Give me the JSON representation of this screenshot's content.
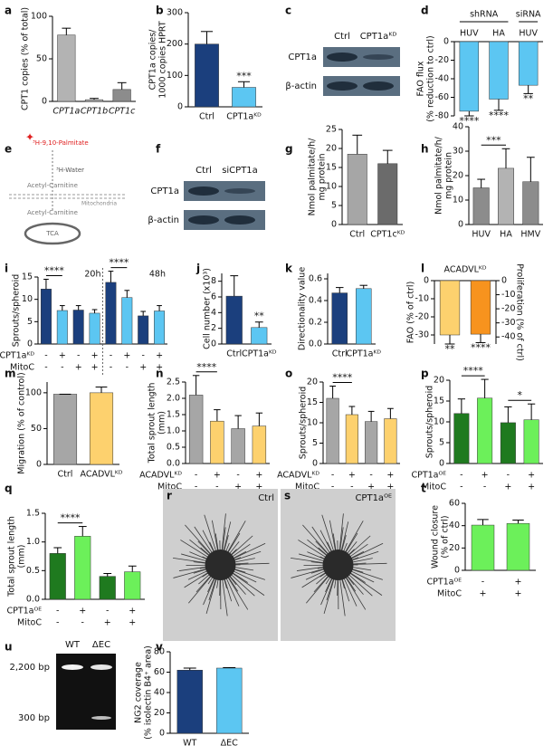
{
  "chart_data": [
    {
      "panel": "a",
      "type": "bar",
      "ylabel": "CPT1 copies (% of total)",
      "categories": [
        "CPT1a",
        "CPT1b",
        "CPT1c"
      ],
      "values": [
        78,
        2,
        14
      ],
      "errors": [
        8,
        1.5,
        8
      ],
      "colors": [
        "#b3b3b3",
        "#b3b3b3",
        "#8c8c8c"
      ],
      "ylim": [
        0,
        100
      ],
      "yticks": [
        0,
        50,
        100
      ]
    },
    {
      "panel": "b",
      "type": "bar",
      "ylabel": [
        "CPT1a copies/",
        "1000 copies HPRT"
      ],
      "categories": [
        "Ctrl",
        "CPT1aᴷᴰ"
      ],
      "values": [
        200,
        62
      ],
      "errors": [
        40,
        18
      ],
      "colors": [
        "#1b3f7d",
        "#5cc6f2"
      ],
      "ylim": [
        0,
        300
      ],
      "yticks": [
        0,
        100,
        200,
        300
      ],
      "annotations": [
        "***"
      ]
    },
    {
      "panel": "d",
      "type": "bar",
      "ylabel": [
        "FAO flux",
        "(% reduction to ctrl)"
      ],
      "groups": [
        "shRNA",
        "siRNA"
      ],
      "categories": [
        "HUV",
        "HA",
        "HUV"
      ],
      "values": [
        -75,
        -62,
        -47
      ],
      "errors": [
        5,
        12,
        9
      ],
      "colors": [
        "#5cc6f2",
        "#5cc6f2",
        "#5cc6f2"
      ],
      "ylim": [
        -80,
        0
      ],
      "yticks": [
        -80,
        -60,
        -40,
        -20,
        0
      ],
      "annotations": [
        "****",
        "****",
        "**"
      ]
    },
    {
      "panel": "g",
      "type": "bar",
      "ylabel": [
        "Nmol palmitate/h/",
        "mg protein"
      ],
      "categories": [
        "Ctrl",
        "CPT1cᴷᴰ"
      ],
      "values": [
        18.5,
        16
      ],
      "errors": [
        5,
        3.5
      ],
      "colors": [
        "#a6a6a6",
        "#6b6b6b"
      ],
      "ylim": [
        0,
        25
      ],
      "yticks": [
        0,
        5,
        10,
        15,
        20,
        25
      ]
    },
    {
      "panel": "h",
      "type": "bar",
      "ylabel": [
        "Nmol palmitate/h/",
        "mg protein"
      ],
      "categories": [
        "HUV",
        "HA",
        "HMV"
      ],
      "values": [
        15,
        23,
        17.5
      ],
      "errors": [
        3.5,
        8,
        10
      ],
      "colors": [
        "#8c8c8c",
        "#b3b3b3",
        "#8c8c8c"
      ],
      "ylim": [
        0,
        40
      ],
      "yticks": [
        0,
        10,
        20,
        30,
        40
      ],
      "annotations": [
        "***"
      ]
    },
    {
      "panel": "i",
      "type": "bar",
      "ylabel": "Sprouts/spheroid",
      "groups": [
        "20h",
        "48h"
      ],
      "values": [
        12.3,
        7.5,
        7.6,
        6.9,
        13.8,
        10.4,
        6.3,
        7.4
      ],
      "errors": [
        2.2,
        1.1,
        1,
        0.8,
        2.5,
        1.6,
        1,
        1.2
      ],
      "colors": [
        "#1b3f7d",
        "#5cc6f2",
        "#1b3f7d",
        "#5cc6f2",
        "#1b3f7d",
        "#5cc6f2",
        "#1b3f7d",
        "#5cc6f2"
      ],
      "ylim": [
        0,
        15
      ],
      "yticks": [
        0,
        5,
        10,
        15
      ],
      "conditions": [
        {
          "name": "CPT1aᴷᴰ",
          "values": [
            "-",
            "+",
            "-",
            "+",
            "-",
            "+",
            "-",
            "+"
          ]
        },
        {
          "name": "MitoC",
          "values": [
            "-",
            "-",
            "+",
            "+",
            "-",
            "-",
            "+",
            "+"
          ]
        }
      ],
      "annotations": [
        "****",
        "****"
      ]
    },
    {
      "panel": "j",
      "type": "bar",
      "ylabel": "Cell number (x10³)",
      "categories": [
        "Ctrl",
        "CPT1aᴷᴰ"
      ],
      "values": [
        6.1,
        2.1
      ],
      "errors": [
        2.6,
        0.7
      ],
      "colors": [
        "#1b3f7d",
        "#5cc6f2"
      ],
      "ylim": [
        0,
        9
      ],
      "yticks": [
        0,
        2,
        4,
        6,
        8
      ],
      "annotations": [
        "**"
      ]
    },
    {
      "panel": "k",
      "type": "bar",
      "ylabel": "Directionality value",
      "categories": [
        "Ctrl",
        "CPT1aᴷᴰ"
      ],
      "values": [
        0.47,
        0.51
      ],
      "errors": [
        0.05,
        0.03
      ],
      "colors": [
        "#1b3f7d",
        "#5cc6f2"
      ],
      "ylim": [
        0,
        0.65
      ],
      "yticks": [
        {
          "value": 0,
          "label": "0.0"
        },
        0.2,
        0.4,
        0.6
      ]
    },
    {
      "panel": "l",
      "type": "bar",
      "title": "ACADVLᴷᴰ",
      "ylabel": "FAO (% of ctrl)",
      "y2label": "Proliferation (% of ctrl)",
      "values": [
        -30,
        -38
      ],
      "errors": [
        5,
        6
      ],
      "axes": [
        "y",
        "y2"
      ],
      "colors": [
        "#fdd16e",
        "#f7931e"
      ],
      "ylim": [
        -35,
        0
      ],
      "yticks": [
        -30,
        -20,
        -10,
        0
      ],
      "y2lim": [
        -45,
        0
      ],
      "y2ticks": [
        -40,
        -30,
        -20,
        -10,
        0
      ],
      "annotations": [
        "**",
        "****"
      ]
    },
    {
      "panel": "m",
      "type": "bar",
      "ylabel": "Migration (% of control)",
      "categories": [
        "Ctrl",
        "ACADVLᴷᴰ"
      ],
      "values": [
        98,
        100
      ],
      "errors": [
        0,
        8
      ],
      "colors": [
        "#a6a6a6",
        "#fdd16e"
      ],
      "ylim": [
        0,
        115
      ],
      "yticks": [
        0,
        50,
        100
      ]
    },
    {
      "panel": "n",
      "type": "bar",
      "ylabel": [
        "Total sprout length",
        "(mm)"
      ],
      "values": [
        2.1,
        1.3,
        1.07,
        1.15
      ],
      "errors": [
        0.6,
        0.35,
        0.4,
        0.4
      ],
      "colors": [
        "#a6a6a6",
        "#fdd16e",
        "#a6a6a6",
        "#fdd16e"
      ],
      "ylim": [
        0,
        2.5
      ],
      "yticks": [
        {
          "value": 0,
          "label": "0.0"
        },
        0.5,
        {
          "value": 1,
          "label": "1.0"
        },
        1.5,
        {
          "value": 2,
          "label": "2.0"
        },
        2.5
      ],
      "conditions": [
        {
          "name": "ACADVLᴷᴰ",
          "values": [
            "-",
            "+",
            "-",
            "+"
          ]
        },
        {
          "name": "MitoC",
          "values": [
            "-",
            "-",
            "+",
            "+"
          ]
        }
      ],
      "annotations": [
        "****"
      ]
    },
    {
      "panel": "o",
      "type": "bar",
      "ylabel": "Sprouts/spheroid",
      "values": [
        16,
        12,
        10.3,
        11
      ],
      "errors": [
        3,
        2,
        2.5,
        2.5
      ],
      "colors": [
        "#a6a6a6",
        "#fdd16e",
        "#a6a6a6",
        "#fdd16e"
      ],
      "ylim": [
        0,
        20
      ],
      "yticks": [
        0,
        5,
        10,
        15,
        20
      ],
      "conditions": [
        {
          "name": "ACADVLᴷᴰ",
          "values": [
            "-",
            "+",
            "-",
            "+"
          ]
        },
        {
          "name": "MitoC",
          "values": [
            "-",
            "-",
            "+",
            "+"
          ]
        }
      ],
      "annotations": [
        "****"
      ]
    },
    {
      "panel": "p",
      "type": "bar",
      "ylabel": "Sprouts/spheroid",
      "values": [
        12,
        15.7,
        9.8,
        10.5
      ],
      "errors": [
        3.5,
        4.5,
        3.8,
        3.8
      ],
      "colors": [
        "#1f7a1f",
        "#6cf05a",
        "#1f7a1f",
        "#6cf05a"
      ],
      "ylim": [
        0,
        20
      ],
      "yticks": [
        0,
        5,
        10,
        15,
        20
      ],
      "conditions": [
        {
          "name": "CPT1aᴼᴱ",
          "values": [
            "-",
            "+",
            "-",
            "+"
          ]
        },
        {
          "name": "MitoC",
          "values": [
            "-",
            "-",
            "+",
            "+"
          ]
        }
      ],
      "annotations": [
        "****",
        "*"
      ]
    },
    {
      "panel": "q",
      "type": "bar",
      "ylabel": [
        "Total sprout length",
        "(mm)"
      ],
      "values": [
        0.8,
        1.1,
        0.4,
        0.48
      ],
      "errors": [
        0.1,
        0.17,
        0.05,
        0.1
      ],
      "colors": [
        "#1f7a1f",
        "#6cf05a",
        "#1f7a1f",
        "#6cf05a"
      ],
      "ylim": [
        0,
        1.5
      ],
      "yticks": [
        {
          "value": 0,
          "label": "0.0"
        },
        0.5,
        {
          "value": 1,
          "label": "1.0"
        },
        1.5
      ],
      "conditions": [
        {
          "name": "CPT1aᴼᴱ",
          "values": [
            "-",
            "+",
            "-",
            "+"
          ]
        },
        {
          "name": "MitoC",
          "values": [
            "-",
            "-",
            "+",
            "+"
          ]
        }
      ],
      "annotations": [
        "****"
      ]
    },
    {
      "panel": "t",
      "type": "bar",
      "ylabel": [
        "Wound closure",
        "(% of ctrl)"
      ],
      "values": [
        40.5,
        42
      ],
      "errors": [
        5,
        3
      ],
      "colors": [
        "#6cf05a",
        "#6cf05a"
      ],
      "ylim": [
        0,
        60
      ],
      "yticks": [
        0,
        20,
        40,
        60
      ],
      "conditions": [
        {
          "name": "CPT1aᴼᴱ",
          "values": [
            "-",
            "+"
          ]
        },
        {
          "name": "MitoC",
          "values": [
            "+",
            "+"
          ]
        }
      ]
    },
    {
      "panel": "v",
      "type": "bar",
      "ylabel": [
        "NG2 coverage",
        "(% isolectin B4⁺ area)"
      ],
      "categories": [
        "WT",
        "ΔEC"
      ],
      "values": [
        62,
        64
      ],
      "errors": [
        2,
        0.5
      ],
      "colors": [
        "#1b3f7d",
        "#5cc6f2"
      ],
      "ylim": [
        0,
        80
      ],
      "yticks": [
        0,
        20,
        40,
        60,
        80
      ]
    }
  ],
  "blots": [
    {
      "panel": "c",
      "lanes": [
        "Ctrl",
        "CPT1aᴷᴰ"
      ],
      "bands": [
        "CPT1a",
        "β-actin"
      ]
    },
    {
      "panel": "f",
      "lanes": [
        "Ctrl",
        "siCPT1a"
      ],
      "bands": [
        "CPT1a",
        "β-actin"
      ]
    },
    {
      "panel": "u",
      "lanes": [
        "WT",
        "ΔEC"
      ],
      "bands": [
        "2,200 bp",
        "300 bp"
      ]
    }
  ],
  "diagram": {
    "panel": "e",
    "labels": [
      "³H-9,10-Palmitate",
      "³H-Water",
      "Acetyl-Carnitine",
      "Mitochondria",
      "Acetyl-Carnitine",
      "TCA"
    ]
  },
  "images": [
    {
      "panel": "r",
      "label": "Ctrl"
    },
    {
      "panel": "s",
      "label": "CPT1aᴼᴱ"
    }
  ]
}
